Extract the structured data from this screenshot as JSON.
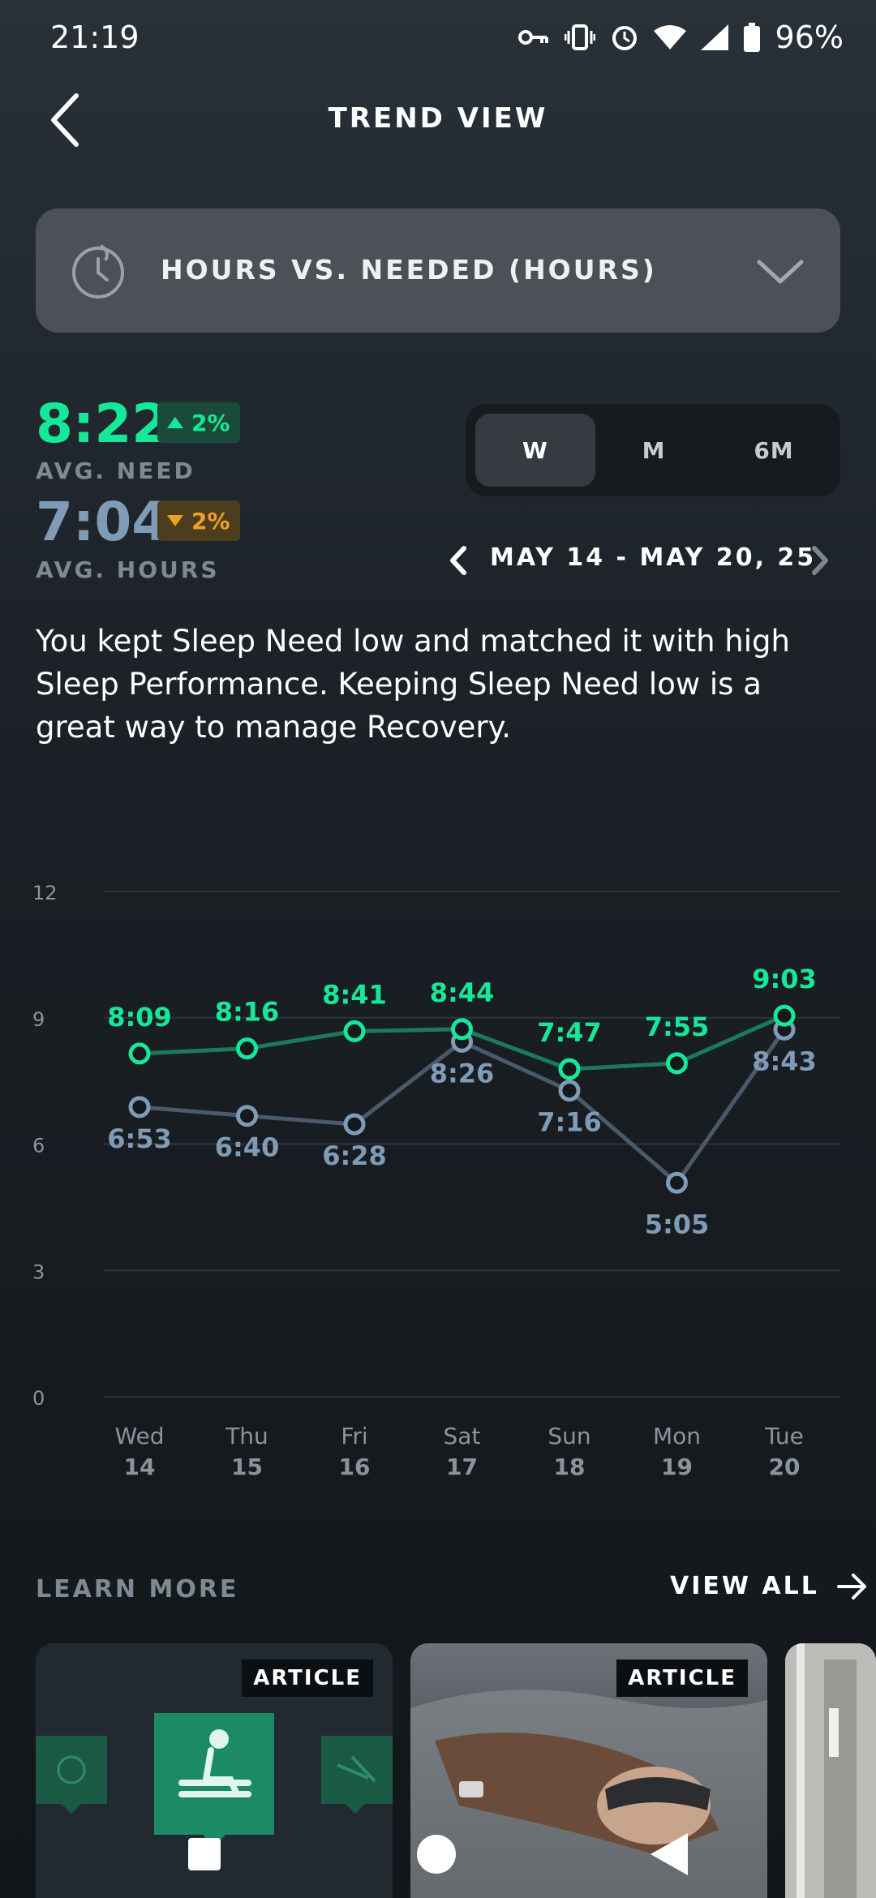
{
  "status": {
    "time": "21:19",
    "battery": "96%",
    "icons": [
      "key-icon",
      "vibrate-icon",
      "alarm-icon",
      "wifi-icon",
      "signal-icon",
      "battery-icon"
    ]
  },
  "header": {
    "title": "TREND VIEW",
    "back_icon": "chevron-left-icon"
  },
  "selector": {
    "label": "HOURS VS. NEEDED (HOURS)",
    "icon": "sleep-clock-icon",
    "chevron": "chevron-down-icon"
  },
  "averages": {
    "need": {
      "value": "8:22",
      "change": "2%",
      "direction": "up",
      "label": "AVG. NEED"
    },
    "hours": {
      "value": "7:04",
      "change": "2%",
      "direction": "down",
      "label": "AVG. HOURS"
    }
  },
  "period": {
    "options": [
      "W",
      "M",
      "6M"
    ],
    "selected": "W"
  },
  "date_range": {
    "label": "MAY 14 - MAY 20, 25"
  },
  "insight": "You kept Sleep Need low and matched it with high Sleep Performance. Keeping Sleep Need low is a great way to manage Recovery.",
  "chart_data": {
    "type": "line",
    "categories": [
      [
        "Wed",
        "14"
      ],
      [
        "Thu",
        "15"
      ],
      [
        "Fri",
        "16"
      ],
      [
        "Sat",
        "17"
      ],
      [
        "Sun",
        "18"
      ],
      [
        "Mon",
        "19"
      ],
      [
        "Tue",
        "20"
      ]
    ],
    "yticks": [
      "12",
      "9",
      "6",
      "3",
      "0"
    ],
    "ylim": [
      0,
      12
    ],
    "grid": true,
    "series": [
      {
        "key": "need",
        "color": "#16e89a",
        "line_color": "#1a7a5a",
        "values": [
          8.15,
          8.27,
          8.68,
          8.73,
          7.78,
          7.92,
          9.05
        ],
        "labels": [
          "8:09",
          "8:16",
          "8:41",
          "8:44",
          "7:47",
          "7:55",
          "9:03"
        ]
      },
      {
        "key": "hours",
        "color": "#7f9bb5",
        "line_color": "#4a5a6a",
        "values": [
          6.88,
          6.67,
          6.47,
          8.43,
          7.27,
          5.08,
          8.72
        ],
        "labels": [
          "6:53",
          "6:40",
          "6:28",
          "8:26",
          "7:16",
          "5:05",
          "8:43"
        ]
      }
    ]
  },
  "learn_more": {
    "label": "LEARN MORE",
    "view_all": "VIEW ALL",
    "cards": [
      {
        "badge": "ARTICLE"
      },
      {
        "badge": "ARTICLE"
      }
    ]
  }
}
